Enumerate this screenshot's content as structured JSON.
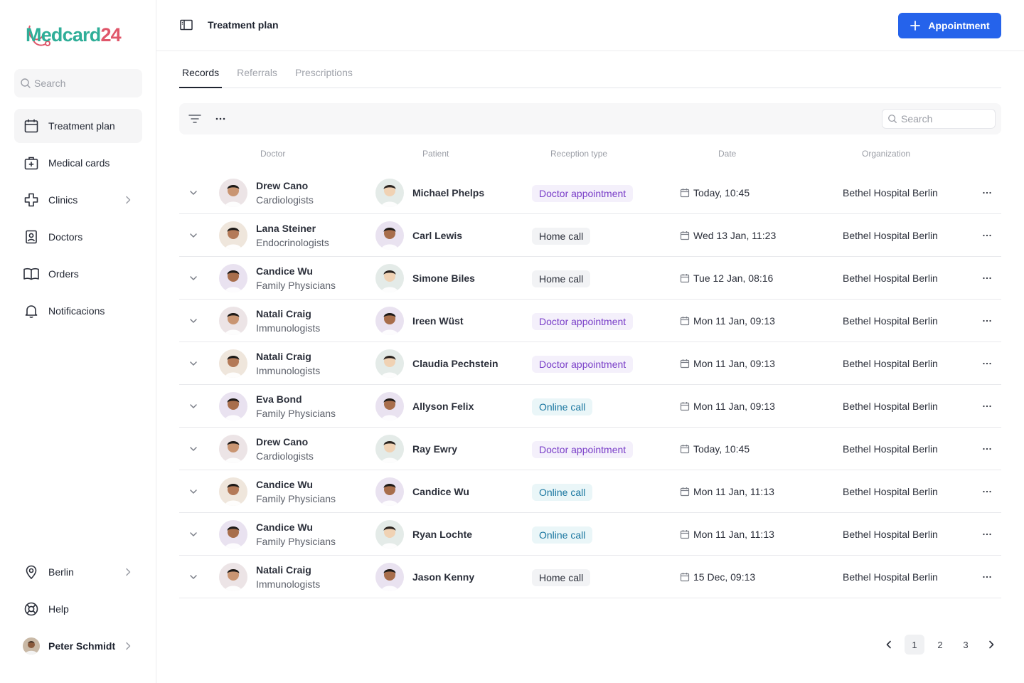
{
  "app": {
    "logo": {
      "prefix": "M",
      "word": "edcard",
      "number": "24"
    }
  },
  "sidebar": {
    "search_placeholder": "Search",
    "nav": [
      {
        "label": "Treatment plan",
        "icon": "calendar-icon",
        "active": true
      },
      {
        "label": "Medical cards",
        "icon": "medical-case-icon"
      },
      {
        "label": "Clinics",
        "icon": "medical-cross-icon",
        "has_submenu": true
      },
      {
        "label": "Doctors",
        "icon": "doctor-badge-icon"
      },
      {
        "label": "Orders",
        "icon": "book-icon"
      },
      {
        "label": "Notificacions",
        "icon": "bell-icon"
      }
    ],
    "bottom": [
      {
        "label": "Berlin",
        "icon": "location-pin-icon",
        "has_submenu": true
      },
      {
        "label": "Help",
        "icon": "lifebuoy-icon"
      },
      {
        "label": "Peter Schmidt",
        "icon": "user-avatar",
        "has_submenu": true
      }
    ]
  },
  "header": {
    "title": "Treatment plan",
    "primary_button": "Appointment"
  },
  "tabs": [
    {
      "label": "Records",
      "active": true
    },
    {
      "label": "Referrals"
    },
    {
      "label": "Prescriptions"
    }
  ],
  "toolbar": {
    "search_placeholder": "Search"
  },
  "table": {
    "columns": [
      "Doctor",
      "Patient",
      "Reception type",
      "Date",
      "Organization"
    ],
    "rows": [
      {
        "doctor": "Drew Cano",
        "specialty": "Cardiologists",
        "patient": "Michael Phelps",
        "reception": "Doctor appointment",
        "kind": "doctor",
        "date": "Today, 10:45",
        "org": "Bethel Hospital Berlin"
      },
      {
        "doctor": "Lana Steiner",
        "specialty": "Endocrinologists",
        "patient": "Carl Lewis",
        "reception": "Home call",
        "kind": "home",
        "date": "Wed 13 Jan, 11:23",
        "org": "Bethel Hospital Berlin"
      },
      {
        "doctor": "Candice Wu",
        "specialty": "Family Physicians",
        "patient": "Simone Biles",
        "reception": "Home call",
        "kind": "home",
        "date": "Tue 12 Jan, 08:16",
        "org": "Bethel Hospital Berlin"
      },
      {
        "doctor": "Natali Craig",
        "specialty": "Immunologists",
        "patient": "Ireen Wüst",
        "reception": "Doctor appointment",
        "kind": "doctor",
        "date": "Mon 11 Jan, 09:13",
        "org": "Bethel Hospital Berlin"
      },
      {
        "doctor": "Natali Craig",
        "specialty": "Immunologists",
        "patient": "Claudia Pechstein",
        "reception": "Doctor appointment",
        "kind": "doctor",
        "date": "Mon 11 Jan, 09:13",
        "org": "Bethel Hospital Berlin"
      },
      {
        "doctor": "Eva Bond",
        "specialty": "Family Physicians",
        "patient": "Allyson Felix",
        "reception": "Online call",
        "kind": "online",
        "date": "Mon 11 Jan, 09:13",
        "org": "Bethel Hospital Berlin"
      },
      {
        "doctor": "Drew Cano",
        "specialty": "Cardiologists",
        "patient": "Ray Ewry",
        "reception": "Doctor appointment",
        "kind": "doctor",
        "date": "Today, 10:45",
        "org": "Bethel Hospital Berlin"
      },
      {
        "doctor": "Candice Wu",
        "specialty": "Family Physicians",
        "patient": "Candice Wu",
        "reception": "Online call",
        "kind": "online",
        "date": "Mon 11 Jan, 11:13",
        "org": "Bethel Hospital Berlin"
      },
      {
        "doctor": "Candice Wu",
        "specialty": "Family Physicians",
        "patient": "Ryan Lochte",
        "reception": "Online call",
        "kind": "online",
        "date": "Mon 11 Jan, 11:13",
        "org": "Bethel Hospital Berlin"
      },
      {
        "doctor": "Natali Craig",
        "specialty": "Immunologists",
        "patient": "Jason Kenny",
        "reception": "Home call",
        "kind": "home",
        "date": "15 Dec, 09:13",
        "org": "Bethel Hospital Berlin"
      }
    ]
  },
  "pagination": {
    "pages": [
      "1",
      "2",
      "3"
    ],
    "current": "1"
  },
  "colors": {
    "primary": "#2563eb",
    "logo_green": "#2fae98",
    "logo_red": "#e0566a",
    "badge_doctor_text": "#7a3fc8",
    "badge_online_text": "#1976a0"
  }
}
